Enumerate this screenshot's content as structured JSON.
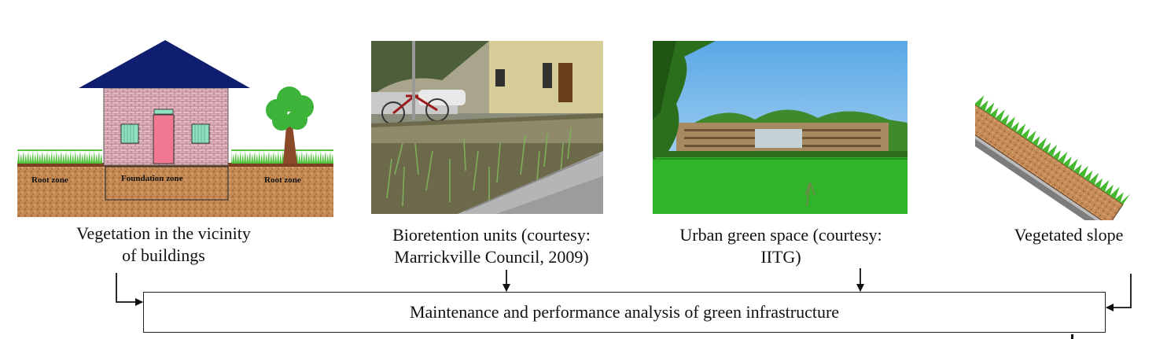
{
  "panels": [
    {
      "id": "buildings",
      "caption_lines": [
        "Vegetation in the vicinity",
        "of buildings"
      ],
      "labels": [
        "Root zone",
        "Foundation zone",
        "Root zone"
      ]
    },
    {
      "id": "bioretention",
      "caption_lines": [
        "Bioretention units (courtesy:",
        "Marrickville Council, 2009)"
      ]
    },
    {
      "id": "urban-green",
      "caption_lines": [
        "Urban green space (courtesy:",
        "IITG)"
      ]
    },
    {
      "id": "slope",
      "caption_lines": [
        "Vegetated slope"
      ]
    }
  ],
  "target": {
    "label": "Maintenance and performance analysis of green infrastructure"
  },
  "colors": {
    "roof": "#0f1e6e",
    "brick": "#d8a0ac",
    "door": "#f07890",
    "window": "#8fe0c0",
    "soil": "#c48a55",
    "grass": "#3fae2a",
    "tree": "#3db33a",
    "trunk": "#8a4a2a",
    "sky": "#5aa8e6",
    "lawn": "#2fb22a"
  }
}
